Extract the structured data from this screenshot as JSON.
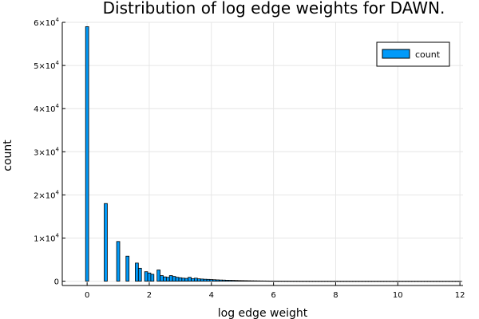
{
  "chart_data": {
    "type": "bar",
    "title": "Distribution of log edge weights for DAWN.",
    "xlabel": "log edge weight",
    "ylabel": "count",
    "xlim": [
      -0.8,
      12.1
    ],
    "ylim": [
      -1000,
      60000
    ],
    "x_ticks": [
      "0",
      "2",
      "4",
      "6",
      "8",
      "10",
      "12"
    ],
    "y_ticks": [
      {
        "value": 0,
        "mantissa": "0",
        "exp": ""
      },
      {
        "value": 10000,
        "mantissa": "1×10",
        "exp": "4"
      },
      {
        "value": 20000,
        "mantissa": "2×10",
        "exp": "4"
      },
      {
        "value": 30000,
        "mantissa": "3×10",
        "exp": "4"
      },
      {
        "value": 40000,
        "mantissa": "4×10",
        "exp": "4"
      },
      {
        "value": 50000,
        "mantissa": "5×10",
        "exp": "4"
      },
      {
        "value": 60000,
        "mantissa": "6×10",
        "exp": "4"
      }
    ],
    "bin_width": 0.1,
    "grid": true,
    "legend": {
      "position": "top-right",
      "entries": [
        "count"
      ]
    },
    "series": [
      {
        "name": "count",
        "color": "#009af9",
        "bins": [
          [
            0.0,
            59000
          ],
          [
            0.6,
            18000
          ],
          [
            1.0,
            9200
          ],
          [
            1.3,
            5800
          ],
          [
            1.6,
            4200
          ],
          [
            1.7,
            3000
          ],
          [
            1.9,
            2200
          ],
          [
            2.0,
            1900
          ],
          [
            2.1,
            1600
          ],
          [
            2.3,
            2600
          ],
          [
            2.4,
            1300
          ],
          [
            2.5,
            1000
          ],
          [
            2.6,
            900
          ],
          [
            2.7,
            1300
          ],
          [
            2.8,
            1100
          ],
          [
            2.9,
            900
          ],
          [
            3.0,
            800
          ],
          [
            3.1,
            700
          ],
          [
            3.2,
            650
          ],
          [
            3.3,
            900
          ],
          [
            3.4,
            600
          ],
          [
            3.5,
            700
          ],
          [
            3.6,
            550
          ],
          [
            3.7,
            500
          ],
          [
            3.8,
            450
          ],
          [
            3.9,
            420
          ],
          [
            4.0,
            380
          ],
          [
            4.1,
            340
          ],
          [
            4.2,
            300
          ],
          [
            4.3,
            270
          ],
          [
            4.4,
            250
          ],
          [
            4.5,
            220
          ],
          [
            4.6,
            200
          ],
          [
            4.7,
            180
          ],
          [
            4.8,
            160
          ],
          [
            4.9,
            140
          ],
          [
            5.0,
            130
          ],
          [
            5.1,
            115
          ],
          [
            5.2,
            100
          ],
          [
            5.3,
            90
          ],
          [
            5.4,
            80
          ],
          [
            5.5,
            70
          ],
          [
            5.6,
            62
          ],
          [
            5.7,
            55
          ],
          [
            5.8,
            48
          ],
          [
            5.9,
            42
          ],
          [
            6.0,
            37
          ],
          [
            6.1,
            32
          ],
          [
            6.2,
            28
          ],
          [
            6.3,
            25
          ],
          [
            6.4,
            22
          ],
          [
            6.5,
            19
          ],
          [
            6.6,
            17
          ],
          [
            6.7,
            15
          ],
          [
            6.8,
            13
          ],
          [
            6.9,
            11
          ],
          [
            7.0,
            10
          ],
          [
            7.1,
            9
          ],
          [
            7.2,
            8
          ],
          [
            7.3,
            7
          ],
          [
            7.4,
            6
          ],
          [
            7.5,
            6
          ],
          [
            7.6,
            5
          ],
          [
            7.7,
            5
          ],
          [
            7.8,
            4
          ],
          [
            7.9,
            4
          ],
          [
            8.0,
            3
          ],
          [
            8.1,
            3
          ],
          [
            8.2,
            3
          ],
          [
            8.3,
            2
          ],
          [
            8.4,
            2
          ],
          [
            8.5,
            2
          ],
          [
            8.6,
            2
          ],
          [
            8.7,
            2
          ],
          [
            8.8,
            1
          ],
          [
            8.9,
            1
          ],
          [
            9.0,
            1
          ],
          [
            9.1,
            1
          ],
          [
            9.2,
            1
          ],
          [
            9.3,
            1
          ],
          [
            9.4,
            1
          ],
          [
            9.5,
            1
          ],
          [
            9.6,
            1
          ],
          [
            9.7,
            1
          ],
          [
            9.8,
            1
          ],
          [
            9.9,
            1
          ],
          [
            10.0,
            1
          ],
          [
            10.1,
            1
          ],
          [
            10.2,
            1
          ],
          [
            10.3,
            1
          ],
          [
            10.4,
            1
          ],
          [
            10.5,
            1
          ],
          [
            10.6,
            1
          ],
          [
            10.7,
            1
          ],
          [
            10.8,
            1
          ],
          [
            10.9,
            1
          ],
          [
            11.0,
            1
          ],
          [
            11.1,
            1
          ],
          [
            11.2,
            1
          ],
          [
            11.3,
            1
          ],
          [
            11.4,
            1
          ],
          [
            11.5,
            1
          ],
          [
            11.6,
            1
          ],
          [
            11.7,
            1
          ],
          [
            11.8,
            1
          ],
          [
            11.9,
            1
          ],
          [
            12.0,
            1
          ]
        ]
      }
    ]
  }
}
